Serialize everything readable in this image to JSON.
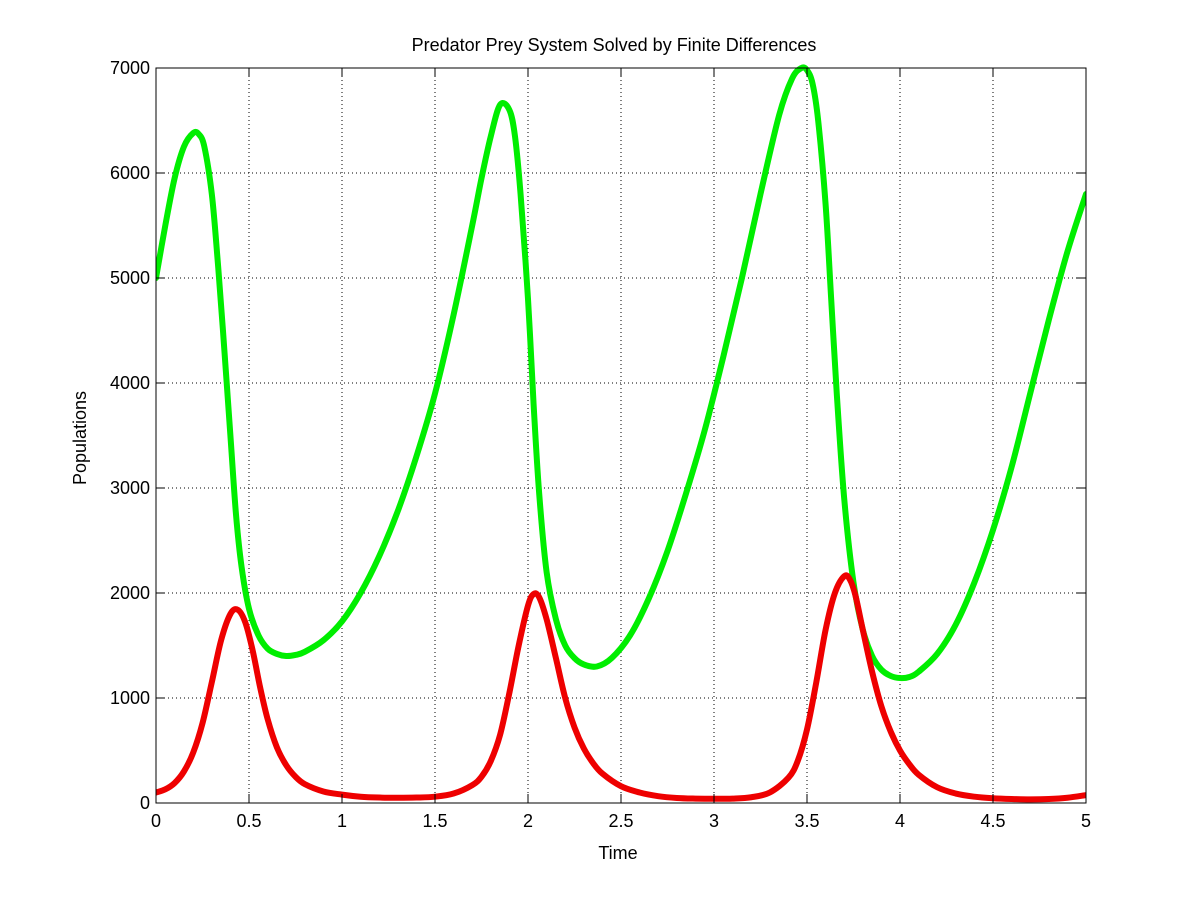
{
  "chart_data": {
    "type": "line",
    "title": "Predator Prey System Solved by Finite Differences",
    "xlabel": "Time",
    "ylabel": "Populations",
    "xlim": [
      0,
      5
    ],
    "ylim": [
      0,
      7000
    ],
    "xticks": [
      0,
      0.5,
      1,
      1.5,
      2,
      2.5,
      3,
      3.5,
      4,
      4.5,
      5
    ],
    "xtick_labels": [
      "0",
      "0.5",
      "1",
      "1.5",
      "2",
      "2.5",
      "3",
      "3.5",
      "4",
      "4.5",
      "5"
    ],
    "yticks": [
      0,
      1000,
      2000,
      3000,
      4000,
      5000,
      6000,
      7000
    ],
    "ytick_labels": [
      "0",
      "1000",
      "2000",
      "3000",
      "4000",
      "5000",
      "6000",
      "7000"
    ],
    "grid": true,
    "grid_style": "dotted",
    "series": [
      {
        "color": "#00ee00",
        "x": [
          0,
          0.05,
          0.1,
          0.15,
          0.2,
          0.23,
          0.26,
          0.3,
          0.33,
          0.36,
          0.4,
          0.43,
          0.46,
          0.5,
          0.55,
          0.6,
          0.65,
          0.7,
          0.75,
          0.8,
          0.9,
          1.0,
          1.1,
          1.2,
          1.3,
          1.4,
          1.5,
          1.6,
          1.7,
          1.75,
          1.8,
          1.85,
          1.9,
          1.93,
          1.96,
          2.0,
          2.03,
          2.06,
          2.1,
          2.15,
          2.2,
          2.25,
          2.3,
          2.37,
          2.45,
          2.55,
          2.65,
          2.75,
          2.85,
          2.95,
          3.05,
          3.15,
          3.25,
          3.35,
          3.42,
          3.47,
          3.5,
          3.53,
          3.56,
          3.6,
          3.63,
          3.66,
          3.7,
          3.75,
          3.8,
          3.85,
          3.9,
          3.95,
          4.0,
          4.05,
          4.1,
          4.2,
          4.3,
          4.4,
          4.5,
          4.6,
          4.7,
          4.8,
          4.9,
          5.0
        ],
        "y": [
          5000,
          5500,
          5950,
          6250,
          6380,
          6370,
          6250,
          5800,
          5200,
          4500,
          3500,
          2750,
          2250,
          1850,
          1600,
          1470,
          1420,
          1400,
          1410,
          1440,
          1550,
          1730,
          2000,
          2350,
          2780,
          3300,
          3900,
          4650,
          5500,
          5950,
          6350,
          6650,
          6600,
          6350,
          5800,
          4800,
          3800,
          2950,
          2200,
          1750,
          1500,
          1380,
          1320,
          1300,
          1380,
          1600,
          1950,
          2400,
          2950,
          3550,
          4250,
          5000,
          5800,
          6550,
          6900,
          7000,
          6980,
          6850,
          6500,
          5700,
          4800,
          3900,
          2900,
          2100,
          1650,
          1400,
          1270,
          1210,
          1190,
          1200,
          1250,
          1420,
          1700,
          2100,
          2600,
          3200,
          3900,
          4600,
          5250,
          5800
        ]
      },
      {
        "color": "#ee0000",
        "x": [
          0,
          0.05,
          0.1,
          0.15,
          0.2,
          0.25,
          0.3,
          0.35,
          0.4,
          0.44,
          0.48,
          0.52,
          0.56,
          0.6,
          0.65,
          0.7,
          0.75,
          0.8,
          0.9,
          1.0,
          1.1,
          1.2,
          1.3,
          1.4,
          1.5,
          1.6,
          1.7,
          1.75,
          1.8,
          1.85,
          1.9,
          1.95,
          2.0,
          2.03,
          2.06,
          2.1,
          2.15,
          2.2,
          2.25,
          2.3,
          2.35,
          2.4,
          2.5,
          2.6,
          2.7,
          2.8,
          2.9,
          3.0,
          3.1,
          3.2,
          3.3,
          3.4,
          3.45,
          3.5,
          3.55,
          3.6,
          3.65,
          3.7,
          3.73,
          3.76,
          3.8,
          3.85,
          3.9,
          3.95,
          4.0,
          4.05,
          4.1,
          4.2,
          4.3,
          4.4,
          4.5,
          4.6,
          4.7,
          4.8,
          4.9,
          5.0
        ],
        "y": [
          100,
          130,
          190,
          300,
          480,
          760,
          1150,
          1550,
          1800,
          1840,
          1720,
          1450,
          1100,
          800,
          530,
          360,
          250,
          180,
          110,
          80,
          60,
          52,
          50,
          52,
          60,
          90,
          170,
          250,
          400,
          650,
          1050,
          1500,
          1880,
          1990,
          1960,
          1750,
          1380,
          1000,
          720,
          520,
          380,
          280,
          160,
          100,
          65,
          48,
          42,
          40,
          42,
          55,
          100,
          240,
          400,
          700,
          1150,
          1650,
          2000,
          2160,
          2130,
          1980,
          1650,
          1250,
          920,
          680,
          500,
          370,
          270,
          150,
          90,
          60,
          45,
          38,
          35,
          38,
          50,
          75
        ]
      }
    ]
  }
}
